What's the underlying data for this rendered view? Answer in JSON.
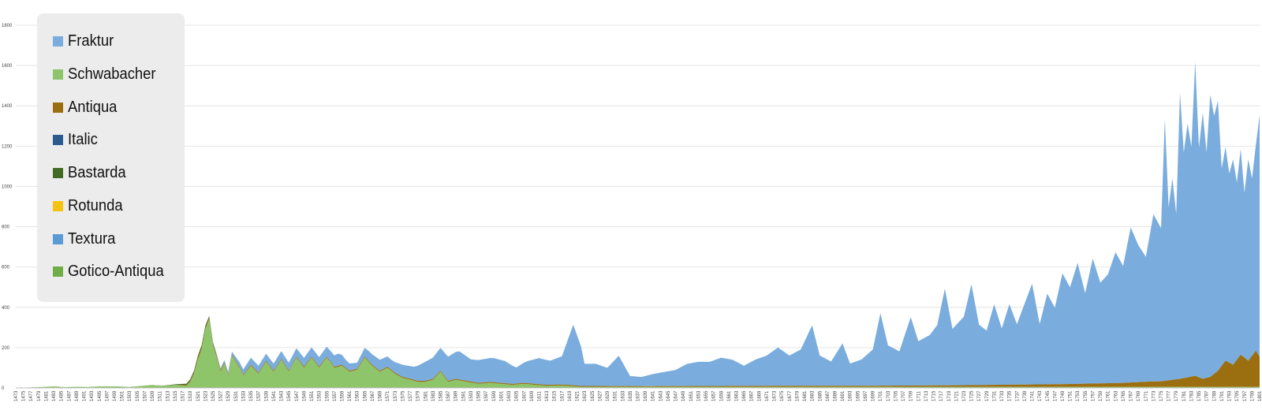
{
  "chart_data": {
    "type": "area",
    "stacked": true,
    "title": "",
    "xlabel": "",
    "ylabel": "",
    "ylim": [
      0,
      1800
    ],
    "y_ticks": [
      0,
      200,
      400,
      600,
      800,
      1000,
      1200,
      1400,
      1600,
      1800
    ],
    "x_range": [
      1473,
      1801
    ],
    "x_tick_start": 1473,
    "x_tick_step": 2,
    "grid": true,
    "legend_position": "top-left",
    "series": [
      {
        "name": "Fraktur",
        "color": "#7aaddd",
        "points": [
          [
            1473,
            0
          ],
          [
            1515,
            0
          ],
          [
            1518,
            0
          ],
          [
            1522,
            0
          ],
          [
            1525,
            3
          ],
          [
            1530,
            15
          ],
          [
            1535,
            35
          ],
          [
            1540,
            35
          ],
          [
            1545,
            40
          ],
          [
            1550,
            45
          ],
          [
            1555,
            50
          ],
          [
            1558,
            60
          ],
          [
            1560,
            40
          ],
          [
            1563,
            30
          ],
          [
            1566,
            50
          ],
          [
            1569,
            55
          ],
          [
            1572,
            50
          ],
          [
            1575,
            60
          ],
          [
            1578,
            65
          ],
          [
            1581,
            95
          ],
          [
            1584,
            110
          ],
          [
            1587,
            120
          ],
          [
            1590,
            140
          ],
          [
            1593,
            110
          ],
          [
            1596,
            115
          ],
          [
            1599,
            120
          ],
          [
            1602,
            110
          ],
          [
            1605,
            80
          ],
          [
            1608,
            110
          ],
          [
            1611,
            130
          ],
          [
            1614,
            120
          ],
          [
            1617,
            140
          ],
          [
            1620,
            300
          ],
          [
            1622,
            200
          ],
          [
            1623,
            110
          ],
          [
            1626,
            110
          ],
          [
            1629,
            90
          ],
          [
            1632,
            150
          ],
          [
            1635,
            50
          ],
          [
            1638,
            45
          ],
          [
            1641,
            60
          ],
          [
            1644,
            70
          ],
          [
            1647,
            80
          ],
          [
            1650,
            110
          ],
          [
            1653,
            120
          ],
          [
            1656,
            120
          ],
          [
            1659,
            140
          ],
          [
            1662,
            130
          ],
          [
            1665,
            100
          ],
          [
            1668,
            130
          ],
          [
            1671,
            150
          ],
          [
            1674,
            190
          ],
          [
            1677,
            150
          ],
          [
            1680,
            180
          ],
          [
            1683,
            300
          ],
          [
            1685,
            150
          ],
          [
            1688,
            120
          ],
          [
            1691,
            210
          ],
          [
            1693,
            110
          ],
          [
            1696,
            130
          ],
          [
            1699,
            180
          ],
          [
            1701,
            360
          ],
          [
            1703,
            200
          ],
          [
            1706,
            170
          ],
          [
            1709,
            340
          ],
          [
            1711,
            220
          ],
          [
            1714,
            250
          ],
          [
            1716,
            300
          ],
          [
            1718,
            480
          ],
          [
            1720,
            280
          ],
          [
            1723,
            340
          ],
          [
            1725,
            500
          ],
          [
            1727,
            300
          ],
          [
            1729,
            270
          ],
          [
            1731,
            400
          ],
          [
            1733,
            280
          ],
          [
            1735,
            400
          ],
          [
            1737,
            300
          ],
          [
            1739,
            400
          ],
          [
            1741,
            500
          ],
          [
            1743,
            300
          ],
          [
            1745,
            450
          ],
          [
            1747,
            380
          ],
          [
            1749,
            550
          ],
          [
            1751,
            480
          ],
          [
            1753,
            600
          ],
          [
            1755,
            450
          ],
          [
            1757,
            620
          ],
          [
            1759,
            500
          ],
          [
            1761,
            540
          ],
          [
            1763,
            650
          ],
          [
            1765,
            580
          ],
          [
            1767,
            770
          ],
          [
            1769,
            680
          ],
          [
            1771,
            620
          ],
          [
            1773,
            830
          ],
          [
            1775,
            760
          ],
          [
            1776,
            1300
          ],
          [
            1777,
            860
          ],
          [
            1778,
            1000
          ],
          [
            1779,
            820
          ],
          [
            1780,
            1420
          ],
          [
            1781,
            1120
          ],
          [
            1782,
            1260
          ],
          [
            1783,
            1140
          ],
          [
            1784,
            1560
          ],
          [
            1785,
            1140
          ],
          [
            1786,
            1320
          ],
          [
            1787,
            1120
          ],
          [
            1788,
            1400
          ],
          [
            1789,
            1280
          ],
          [
            1790,
            1340
          ],
          [
            1791,
            980
          ],
          [
            1792,
            1060
          ],
          [
            1793,
            940
          ],
          [
            1794,
            1020
          ],
          [
            1795,
            880
          ],
          [
            1796,
            1020
          ],
          [
            1797,
            820
          ],
          [
            1798,
            1000
          ],
          [
            1799,
            880
          ],
          [
            1800,
            1020
          ],
          [
            1801,
            1200
          ]
        ]
      },
      {
        "name": "Schwabacher",
        "color": "#8ec46a",
        "points": [
          [
            1473,
            0
          ],
          [
            1480,
            5
          ],
          [
            1483,
            8
          ],
          [
            1486,
            4
          ],
          [
            1489,
            6
          ],
          [
            1492,
            5
          ],
          [
            1495,
            8
          ],
          [
            1500,
            8
          ],
          [
            1503,
            5
          ],
          [
            1506,
            10
          ],
          [
            1509,
            15
          ],
          [
            1512,
            10
          ],
          [
            1515,
            15
          ],
          [
            1518,
            10
          ],
          [
            1519,
            30
          ],
          [
            1520,
            70
          ],
          [
            1521,
            140
          ],
          [
            1522,
            190
          ],
          [
            1523,
            290
          ],
          [
            1524,
            340
          ],
          [
            1525,
            210
          ],
          [
            1526,
            150
          ],
          [
            1527,
            80
          ],
          [
            1528,
            120
          ],
          [
            1529,
            60
          ],
          [
            1530,
            160
          ],
          [
            1532,
            100
          ],
          [
            1533,
            60
          ],
          [
            1535,
            110
          ],
          [
            1537,
            70
          ],
          [
            1539,
            130
          ],
          [
            1541,
            80
          ],
          [
            1543,
            140
          ],
          [
            1545,
            80
          ],
          [
            1547,
            150
          ],
          [
            1549,
            100
          ],
          [
            1551,
            150
          ],
          [
            1553,
            100
          ],
          [
            1555,
            150
          ],
          [
            1557,
            100
          ],
          [
            1559,
            110
          ],
          [
            1561,
            80
          ],
          [
            1563,
            90
          ],
          [
            1565,
            150
          ],
          [
            1567,
            110
          ],
          [
            1569,
            80
          ],
          [
            1571,
            100
          ],
          [
            1573,
            70
          ],
          [
            1575,
            50
          ],
          [
            1577,
            40
          ],
          [
            1579,
            30
          ],
          [
            1581,
            30
          ],
          [
            1583,
            40
          ],
          [
            1585,
            80
          ],
          [
            1587,
            30
          ],
          [
            1589,
            40
          ],
          [
            1592,
            30
          ],
          [
            1595,
            20
          ],
          [
            1598,
            25
          ],
          [
            1601,
            20
          ],
          [
            1604,
            15
          ],
          [
            1607,
            20
          ],
          [
            1610,
            15
          ],
          [
            1613,
            10
          ],
          [
            1616,
            12
          ],
          [
            1619,
            10
          ],
          [
            1622,
            5
          ],
          [
            1625,
            5
          ],
          [
            1630,
            5
          ],
          [
            1640,
            5
          ],
          [
            1650,
            5
          ],
          [
            1660,
            5
          ],
          [
            1680,
            5
          ],
          [
            1700,
            5
          ],
          [
            1740,
            5
          ],
          [
            1780,
            5
          ],
          [
            1801,
            5
          ]
        ]
      },
      {
        "name": "Antiqua",
        "color": "#9b6e10",
        "points": [
          [
            1473,
            0
          ],
          [
            1515,
            0
          ],
          [
            1518,
            5
          ],
          [
            1520,
            8
          ],
          [
            1522,
            10
          ],
          [
            1525,
            8
          ],
          [
            1528,
            6
          ],
          [
            1530,
            5
          ],
          [
            1540,
            5
          ],
          [
            1560,
            5
          ],
          [
            1580,
            5
          ],
          [
            1600,
            5
          ],
          [
            1620,
            5
          ],
          [
            1640,
            4
          ],
          [
            1660,
            5
          ],
          [
            1680,
            6
          ],
          [
            1700,
            6
          ],
          [
            1720,
            8
          ],
          [
            1730,
            10
          ],
          [
            1740,
            12
          ],
          [
            1750,
            14
          ],
          [
            1760,
            18
          ],
          [
            1765,
            20
          ],
          [
            1770,
            25
          ],
          [
            1775,
            28
          ],
          [
            1780,
            40
          ],
          [
            1784,
            55
          ],
          [
            1786,
            40
          ],
          [
            1788,
            50
          ],
          [
            1790,
            80
          ],
          [
            1792,
            130
          ],
          [
            1794,
            110
          ],
          [
            1796,
            160
          ],
          [
            1798,
            130
          ],
          [
            1800,
            180
          ],
          [
            1801,
            150
          ]
        ]
      },
      {
        "name": "Italic",
        "color": "#2b5a8f",
        "points": [
          [
            1473,
            0
          ],
          [
            1801,
            0
          ]
        ]
      },
      {
        "name": "Bastarda",
        "color": "#416b25",
        "points": [
          [
            1473,
            0
          ],
          [
            1510,
            0
          ],
          [
            1515,
            3
          ],
          [
            1520,
            8
          ],
          [
            1522,
            12
          ],
          [
            1524,
            8
          ],
          [
            1527,
            3
          ],
          [
            1530,
            0
          ],
          [
            1801,
            0
          ]
        ]
      },
      {
        "name": "Rotunda",
        "color": "#f5c211",
        "points": [
          [
            1473,
            0
          ],
          [
            1801,
            0
          ]
        ]
      },
      {
        "name": "Textura",
        "color": "#5b9bd5",
        "points": [
          [
            1473,
            0
          ],
          [
            1801,
            0
          ]
        ]
      },
      {
        "name": "Gotico-Antiqua",
        "color": "#70ad47",
        "points": [
          [
            1473,
            0
          ],
          [
            1801,
            0
          ]
        ]
      }
    ]
  }
}
